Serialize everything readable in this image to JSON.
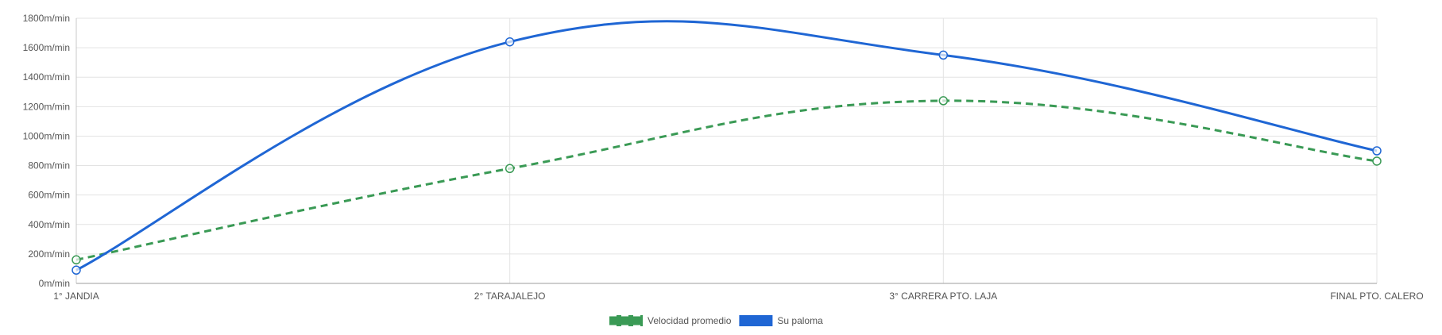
{
  "chart_data": {
    "type": "line",
    "categories": [
      "1° JANDIA",
      "2° TARAJALEJO",
      "3° CARRERA PTO. LAJA",
      "FINAL PTO. CALERO"
    ],
    "ylim": [
      0,
      1800
    ],
    "y_ticks": [
      0,
      200,
      400,
      600,
      800,
      1000,
      1200,
      1400,
      1600,
      1800
    ],
    "y_tick_labels": [
      "0m/min",
      "200m/min",
      "400m/min",
      "600m/min",
      "800m/min",
      "1000m/min",
      "1200m/min",
      "1400m/min",
      "1600m/min",
      "1800m/min"
    ],
    "grid": true,
    "legend_position": "bottom",
    "series": [
      {
        "name": "Velocidad promedio",
        "values": [
          160,
          780,
          1240,
          830
        ],
        "color": "#3a9a55",
        "dashed": true
      },
      {
        "name": "Su paloma",
        "values": [
          90,
          1640,
          1550,
          900
        ],
        "color": "#1f66d4",
        "dashed": false
      }
    ]
  }
}
